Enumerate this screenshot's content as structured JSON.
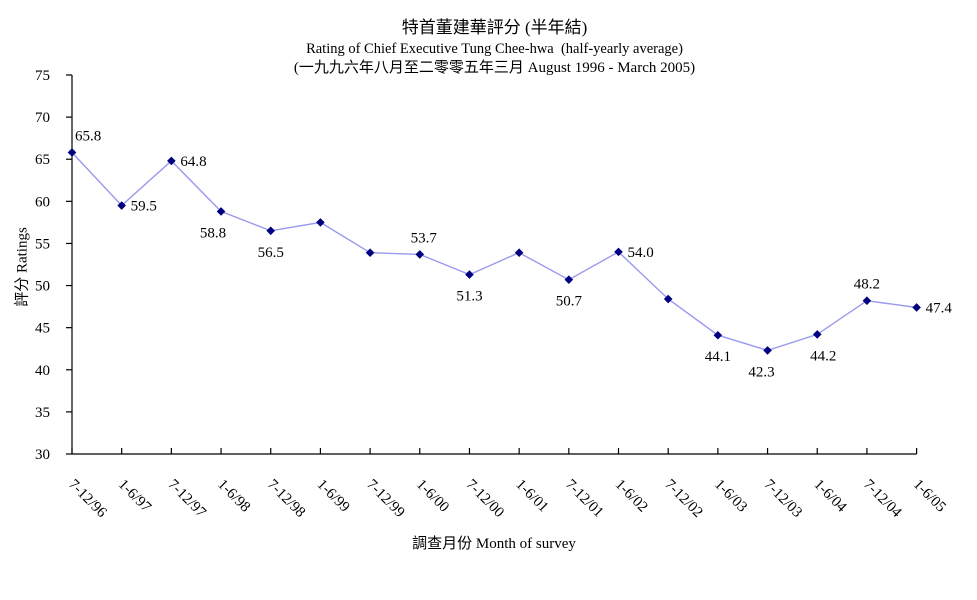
{
  "title": {
    "line1_zh": "特首董建華評分 (半年結)",
    "line2_en": "Rating of Chief Executive Tung Chee-hwa  (half-yearly average)",
    "line3_period": "(一九九六年八月至二零零五年三月 August 1996 - March 2005)"
  },
  "chart_data": {
    "type": "line",
    "title": "特首董建華評分 (半年結) — Rating of Chief Executive Tung Chee-hwa (half-yearly average), August 1996 - March 2005",
    "xlabel": "調查月份 Month of survey",
    "ylabel": "評分 Ratings",
    "ylim": [
      30,
      75
    ],
    "y_ticks": [
      30,
      35,
      40,
      45,
      50,
      55,
      60,
      65,
      70,
      75
    ],
    "grid": false,
    "legend": "none",
    "line_color": "#9999EE",
    "marker_color": "#000080",
    "axis_color": "#000000",
    "x_tick_rotation": 45,
    "categories": [
      "7-12/96",
      "1-6/97",
      "7-12/97",
      "1-6/98",
      "7-12/98",
      "1-6/99",
      "7-12/99",
      "1-6/00",
      "7-12/00",
      "1-6/01",
      "7-12/01",
      "1-6/02",
      "7-12/02",
      "1-6/03",
      "7-12/03",
      "1-6/04",
      "7-12/04",
      "1-6/05"
    ],
    "values": [
      65.8,
      59.5,
      64.8,
      58.8,
      56.5,
      57.5,
      53.9,
      53.7,
      51.3,
      53.9,
      50.7,
      54.0,
      48.4,
      44.1,
      42.3,
      44.2,
      48.2,
      47.4
    ],
    "data_labels": [
      {
        "text": "65.8",
        "pos": "above-start"
      },
      {
        "text": "59.5",
        "pos": "right"
      },
      {
        "text": "64.8",
        "pos": "right"
      },
      {
        "text": "58.8",
        "pos": "below",
        "dx": -8
      },
      {
        "text": "56.5",
        "pos": "below"
      },
      null,
      null,
      {
        "text": "53.7",
        "pos": "above",
        "dx": 4
      },
      {
        "text": "51.3",
        "pos": "below"
      },
      null,
      {
        "text": "50.7",
        "pos": "below"
      },
      {
        "text": "54.0",
        "pos": "right"
      },
      null,
      {
        "text": "44.1",
        "pos": "below"
      },
      {
        "text": "42.3",
        "pos": "below",
        "dx": -6
      },
      {
        "text": "44.2",
        "pos": "below",
        "dx": 6
      },
      {
        "text": "48.2",
        "pos": "above"
      },
      {
        "text": "47.4",
        "pos": "right"
      }
    ]
  }
}
